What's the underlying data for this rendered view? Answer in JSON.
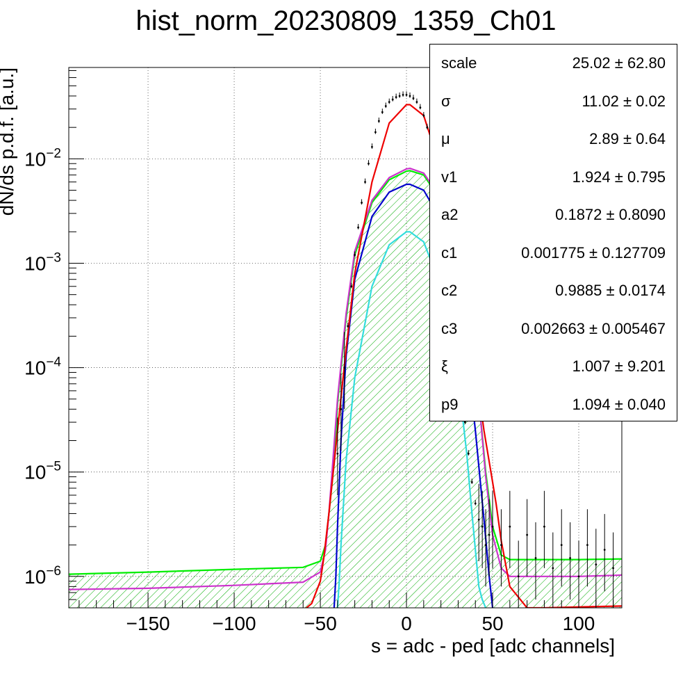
{
  "title": "hist_norm_20230809_1359_Ch01",
  "chart_data": {
    "type": "scatter",
    "xlabel": "s = adc - ped [adc channels]",
    "ylabel": "dN/ds p.d.f. [a.u.]",
    "xlim": [
      -196,
      125
    ],
    "ylim": [
      5e-07,
      0.075
    ],
    "yscale": "log",
    "grid": true,
    "x_ticks": [
      -150,
      -100,
      -50,
      0,
      50,
      100
    ],
    "x_tick_labels": [
      "−150",
      "−100",
      "−50",
      "0",
      "50",
      "100"
    ],
    "y_ticks": [
      1e-06,
      1e-05,
      0.0001,
      0.001,
      0.01
    ],
    "y_tick_labels": [
      {
        "base": "10",
        "exp": "−6"
      },
      {
        "base": "10",
        "exp": "−5"
      },
      {
        "base": "10",
        "exp": "−4"
      },
      {
        "base": "10",
        "exp": "−3"
      },
      {
        "base": "10",
        "exp": "−2"
      }
    ],
    "curves": [
      {
        "color": "#00ee00",
        "filled": true,
        "hatch_color": "#00aa00",
        "x": [
          -196,
          -150,
          -100,
          -60,
          -50,
          -47,
          -45,
          -42,
          -40,
          -35,
          -30,
          -20,
          -10,
          0,
          2,
          10,
          20,
          30,
          38,
          42,
          46,
          50,
          55,
          60,
          80,
          100,
          125
        ],
        "y": [
          1.05e-06,
          1.1e-06,
          1.17e-06,
          1.22e-06,
          1.4e-06,
          2e-06,
          4e-06,
          1.2e-05,
          4.5e-05,
          0.0003,
          0.0012,
          0.0038,
          0.0063,
          0.0076,
          0.0077,
          0.007,
          0.004,
          0.001,
          0.00018,
          5e-05,
          1e-05,
          3e-06,
          1.6e-06,
          1.45e-06,
          1.45e-06,
          1.45e-06,
          1.47e-06
        ]
      },
      {
        "color": "#cc33cc",
        "filled": false,
        "x": [
          -196,
          -150,
          -100,
          -60,
          -50,
          -47,
          -45,
          -43,
          -40,
          -35,
          -30,
          -20,
          -10,
          0,
          2,
          10,
          20,
          30,
          38,
          42,
          46,
          50,
          55,
          60,
          80,
          100,
          125
        ],
        "y": [
          7.5e-07,
          7.7e-07,
          8.2e-07,
          8.8e-07,
          1.1e-06,
          1.8e-06,
          4e-06,
          1.1e-05,
          5e-05,
          0.00033,
          0.0013,
          0.004,
          0.0066,
          0.008,
          0.0081,
          0.0073,
          0.0042,
          0.0011,
          0.0002,
          5e-05,
          9e-06,
          2.5e-06,
          1.2e-06,
          1e-06,
          1e-06,
          1e-06,
          1.03e-06
        ]
      },
      {
        "color": "#0000cc",
        "filled": false,
        "x": [
          -42,
          -41,
          -40,
          -38,
          -35,
          -30,
          -20,
          -10,
          0,
          2,
          10,
          20,
          30,
          35,
          40,
          45,
          48,
          50
        ],
        "y": [
          5e-07,
          1e-06,
          3e-06,
          2e-05,
          0.00013,
          0.0007,
          0.0028,
          0.0048,
          0.0057,
          0.0057,
          0.005,
          0.0026,
          0.0006,
          0.00015,
          2.5e-05,
          3.5e-06,
          1e-06,
          5e-07
        ]
      },
      {
        "color": "#33dddd",
        "filled": false,
        "x": [
          -40,
          -39,
          -38,
          -35,
          -30,
          -20,
          -10,
          0,
          2,
          10,
          20,
          30,
          35,
          38,
          42,
          44,
          46
        ],
        "y": [
          5e-07,
          9e-07,
          2e-06,
          1.3e-05,
          8e-05,
          0.0006,
          0.0015,
          0.002,
          0.002,
          0.0016,
          0.0006,
          8e-05,
          1.5e-05,
          4e-06,
          8e-07,
          6e-07,
          5e-07
        ]
      },
      {
        "color": "#ee0000",
        "filled": false,
        "x": [
          -80,
          -70,
          -60,
          -55,
          -50,
          -48,
          -45,
          -40,
          -35,
          -30,
          -20,
          -10,
          0,
          2,
          10,
          20,
          30,
          40,
          45,
          50,
          52,
          55,
          60,
          70,
          80,
          100,
          125
        ],
        "y": [
          4.3e-07,
          4.4e-07,
          4.7e-07,
          5.5e-07,
          9e-07,
          1.5e-06,
          4e-06,
          2.5e-05,
          0.00015,
          0.0008,
          0.006,
          0.022,
          0.033,
          0.033,
          0.026,
          0.008,
          0.0012,
          0.0001,
          2.5e-05,
          8e-06,
          5e-06,
          2.2e-06,
          8e-07,
          5e-07,
          5e-07,
          5.1e-07,
          5.2e-07
        ]
      }
    ],
    "data_points": {
      "color": "#000000",
      "x": [
        -40,
        -38,
        -36,
        -34,
        -32,
        -30,
        -28,
        -26,
        -24,
        -22,
        -20,
        -18,
        -16,
        -14,
        -12,
        -10,
        -8,
        -6,
        -4,
        -2,
        0,
        2,
        4,
        6,
        8,
        10,
        12,
        14,
        16,
        18,
        20,
        22,
        24,
        26,
        28,
        30,
        32,
        34,
        36,
        38,
        40,
        42,
        44,
        46,
        48,
        50,
        55,
        60,
        65,
        70,
        75,
        80,
        85,
        90,
        95,
        100,
        105,
        110,
        115,
        120
      ],
      "y": [
        1.5e-05,
        4e-05,
        0.0001,
        0.00025,
        0.0006,
        0.0012,
        0.0022,
        0.0038,
        0.006,
        0.009,
        0.013,
        0.018,
        0.023,
        0.028,
        0.032,
        0.035,
        0.037,
        0.039,
        0.04,
        0.041,
        0.041,
        0.04,
        0.038,
        0.035,
        0.031,
        0.026,
        0.02,
        0.015,
        0.01,
        0.0065,
        0.004,
        0.0023,
        0.0012,
        0.0006,
        0.00028,
        0.00013,
        6e-05,
        3e-05,
        1.5e-05,
        8e-06,
        5e-06,
        3.5e-06,
        3e-06,
        2e-06,
        2.5e-06,
        3e-06,
        2e-06,
        3e-06,
        1e-06,
        2.5e-06,
        1.5e-06,
        3e-06,
        1.2e-06,
        2e-06,
        1.5e-06,
        1e-06,
        2e-06,
        1.3e-06,
        1.8e-06,
        1.2e-06
      ]
    },
    "stats": [
      {
        "name": "scale",
        "value": "25.02 ± 62.80"
      },
      {
        "name": "σ",
        "value": "11.02 ± 0.02"
      },
      {
        "name": "μ",
        "value": "2.89 ± 0.64"
      },
      {
        "name": "v1",
        "value": "1.924 ± 0.795"
      },
      {
        "name": "a2",
        "value": "0.1872 ± 0.8090"
      },
      {
        "name": "c1",
        "value": "0.001775 ± 0.127709"
      },
      {
        "name": "c2",
        "value": "0.9885 ± 0.0174"
      },
      {
        "name": "c3",
        "value": "0.002663 ± 0.005467"
      },
      {
        "name": "ξ",
        "value": "1.007 ± 9.201"
      },
      {
        "name": "p9",
        "value": "1.094 ± 0.040"
      }
    ]
  }
}
